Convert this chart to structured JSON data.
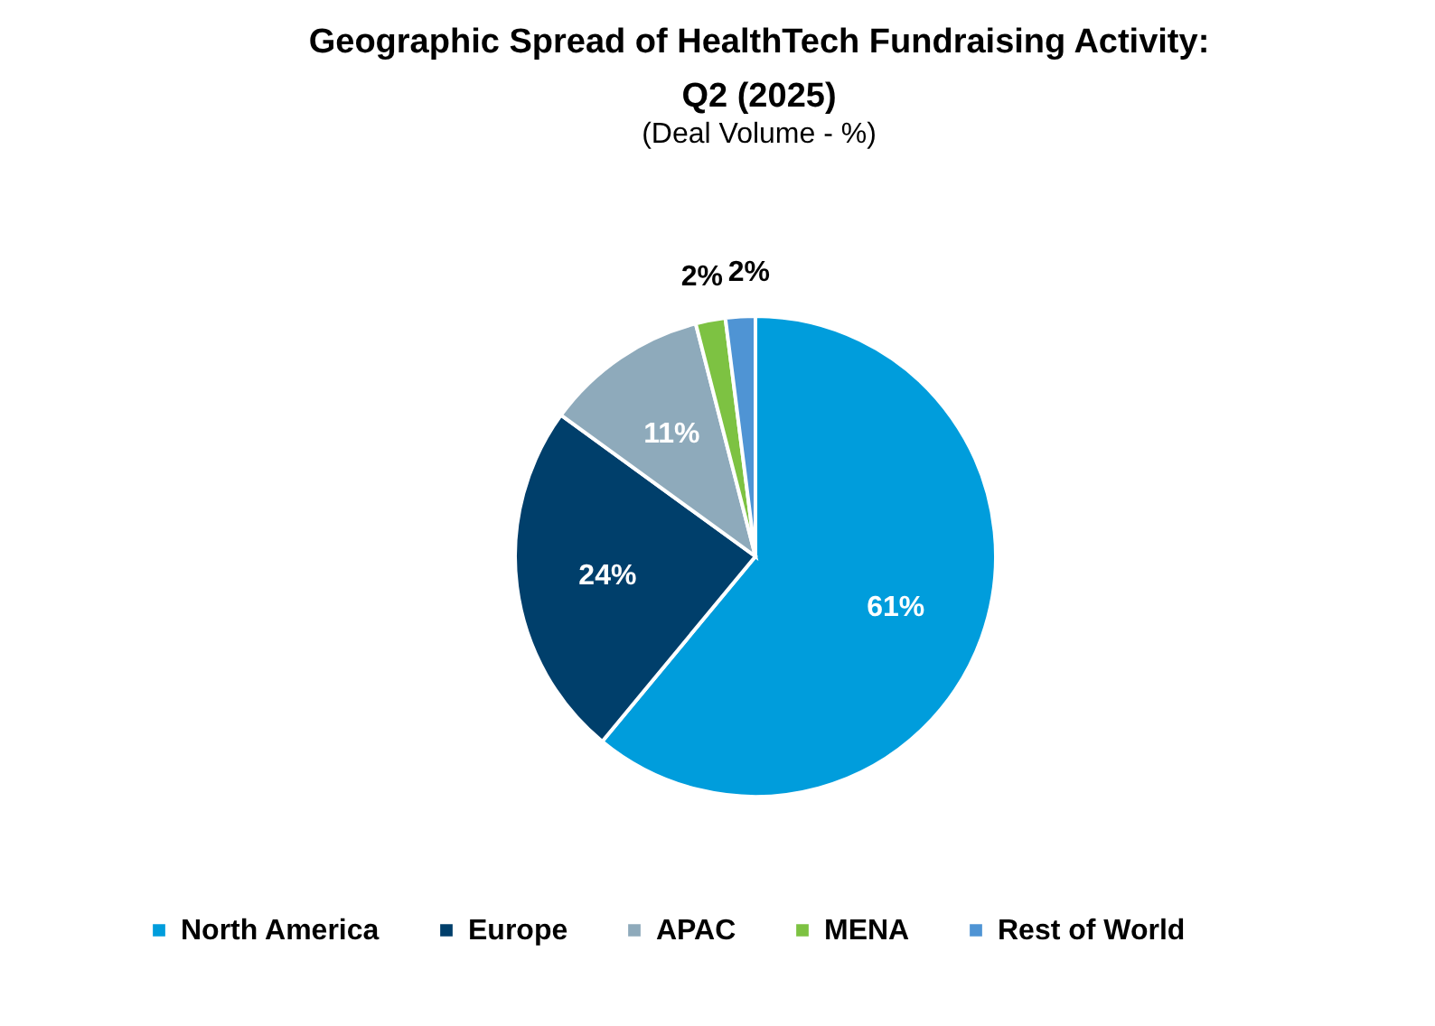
{
  "chart_data": {
    "type": "pie",
    "title": "Geographic Spread of HealthTech Fundraising Activity:\nQ2 (2025)",
    "subtitle": "(Deal Volume - %)",
    "categories": [
      "North America",
      "Europe",
      "APAC",
      "MENA",
      "Rest of World"
    ],
    "values": [
      61,
      24,
      11,
      2,
      2
    ],
    "value_labels": [
      "61%",
      "24%",
      "11%",
      "2%",
      "2%"
    ],
    "colors": [
      "#009ddc",
      "#003f6b",
      "#8eaabb",
      "#7dc242",
      "#4f94d4"
    ],
    "legend": "bottom"
  }
}
